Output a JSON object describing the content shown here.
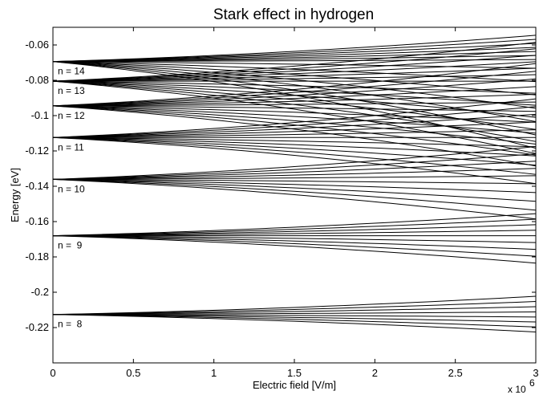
{
  "chart_data": {
    "type": "line",
    "title": "Stark effect in hydrogen",
    "xlabel": "Electric field [V/m]",
    "ylabel": "Energy [eV]",
    "x_multiplier": "x 10",
    "x_multiplier_exponent": "6",
    "xlim": [
      0,
      3
    ],
    "ylim": [
      -0.24,
      -0.05
    ],
    "x_ticks": [
      0,
      0.5,
      1,
      1.5,
      2,
      2.5,
      3
    ],
    "x_tick_labels": [
      "0",
      "0.5",
      "1",
      "1.5",
      "2",
      "2.5",
      "3"
    ],
    "y_ticks": [
      -0.06,
      -0.08,
      -0.1,
      -0.12,
      -0.14,
      -0.16,
      -0.18,
      -0.2,
      -0.22
    ],
    "y_tick_labels": [
      "-0.06",
      "-0.08",
      "-0.1",
      "-0.12",
      "-0.14",
      "-0.16",
      "-0.18",
      "-0.2",
      "-0.22"
    ],
    "grid": false,
    "line_color": "#000000",
    "levels": [
      {
        "label": "n =  8",
        "n": 8,
        "e0": -0.2126,
        "top_at_max": -0.2023,
        "bottom_at_max": -0.2225
      },
      {
        "label": "n =  9",
        "n": 9,
        "e0": -0.168,
        "top_at_max": -0.1555,
        "bottom_at_max": -0.1835
      },
      {
        "label": "n = 10",
        "n": 10,
        "e0": -0.1361,
        "top_at_max": -0.1175,
        "bottom_at_max": -0.1585
      },
      {
        "label": "n = 11",
        "n": 11,
        "e0": -0.1124,
        "top_at_max": -0.0905,
        "bottom_at_max": -0.1385
      },
      {
        "label": "n = 12",
        "n": 12,
        "e0": -0.0945,
        "top_at_max": -0.0705,
        "bottom_at_max": -0.1285
      },
      {
        "label": "n = 13",
        "n": 13,
        "e0": -0.0805,
        "top_at_max": -0.0585,
        "bottom_at_max": -0.1215
      },
      {
        "label": "n = 14",
        "n": 14,
        "e0": -0.0694,
        "top_at_max": -0.0545,
        "bottom_at_max": -0.1185
      }
    ]
  }
}
